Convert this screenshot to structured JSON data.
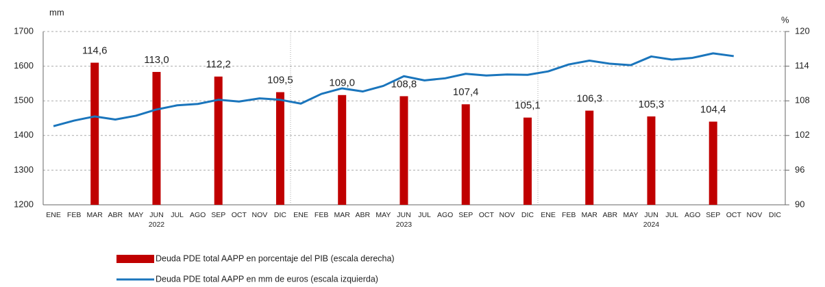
{
  "chart_data": {
    "type": "bar_line",
    "y_axis_label": "mm",
    "y2_axis_label": "%",
    "categories": [
      "ENE",
      "FEB",
      "MAR",
      "ABR",
      "MAY",
      "JUN",
      "JUL",
      "AGO",
      "SEP",
      "OCT",
      "NOV",
      "DIC",
      "ENE",
      "FEB",
      "MAR",
      "ABR",
      "MAY",
      "JUN",
      "JUL",
      "AGO",
      "SEP",
      "OCT",
      "NOV",
      "DIC",
      "ENE",
      "FEB",
      "MAR",
      "ABR",
      "MAY",
      "JUN",
      "JUL",
      "AGO",
      "SEP",
      "OCT",
      "NOV",
      "DIC"
    ],
    "year_labels": [
      "2022",
      "2023",
      "2024"
    ],
    "ylim": [
      1200,
      1700
    ],
    "yticks": [
      1200,
      1300,
      1400,
      1500,
      1600,
      1700
    ],
    "y2lim": [
      90,
      120
    ],
    "y2ticks": [
      90,
      96,
      102,
      108,
      114,
      120
    ],
    "grid": true,
    "series": [
      {
        "name": "Deuda PDE total AAPP en porcentaje del PIB (escala derecha)",
        "type": "bar",
        "axis": "y2",
        "color": "#c00000",
        "values": [
          null,
          null,
          114.6,
          null,
          null,
          113.0,
          null,
          null,
          112.2,
          null,
          null,
          109.5,
          null,
          null,
          109.0,
          null,
          null,
          108.8,
          null,
          null,
          107.4,
          null,
          null,
          105.1,
          null,
          null,
          106.3,
          null,
          null,
          105.3,
          null,
          null,
          104.4,
          null,
          null,
          null
        ],
        "value_labels": [
          null,
          null,
          "114,6",
          null,
          null,
          "113,0",
          null,
          null,
          "112,2",
          null,
          null,
          "109,5",
          null,
          null,
          "109,0",
          null,
          null,
          "108,8",
          null,
          null,
          "107,4",
          null,
          null,
          "105,1",
          null,
          null,
          "106,3",
          null,
          null,
          "105,3",
          null,
          null,
          "104,4",
          null,
          null,
          null
        ]
      },
      {
        "name": "Deuda PDE total AAPP en mm de euros (escala izquierda)",
        "type": "line",
        "color": "#1a75bc",
        "values": [
          1427,
          1443,
          1455,
          1446,
          1457,
          1475,
          1487,
          1491,
          1503,
          1498,
          1507,
          1503,
          1492,
          1520,
          1536,
          1527,
          1543,
          1571,
          1559,
          1565,
          1578,
          1573,
          1576,
          1575,
          1585,
          1605,
          1616,
          1607,
          1603,
          1628,
          1619,
          1624,
          1637,
          1629,
          null,
          null
        ]
      }
    ]
  }
}
